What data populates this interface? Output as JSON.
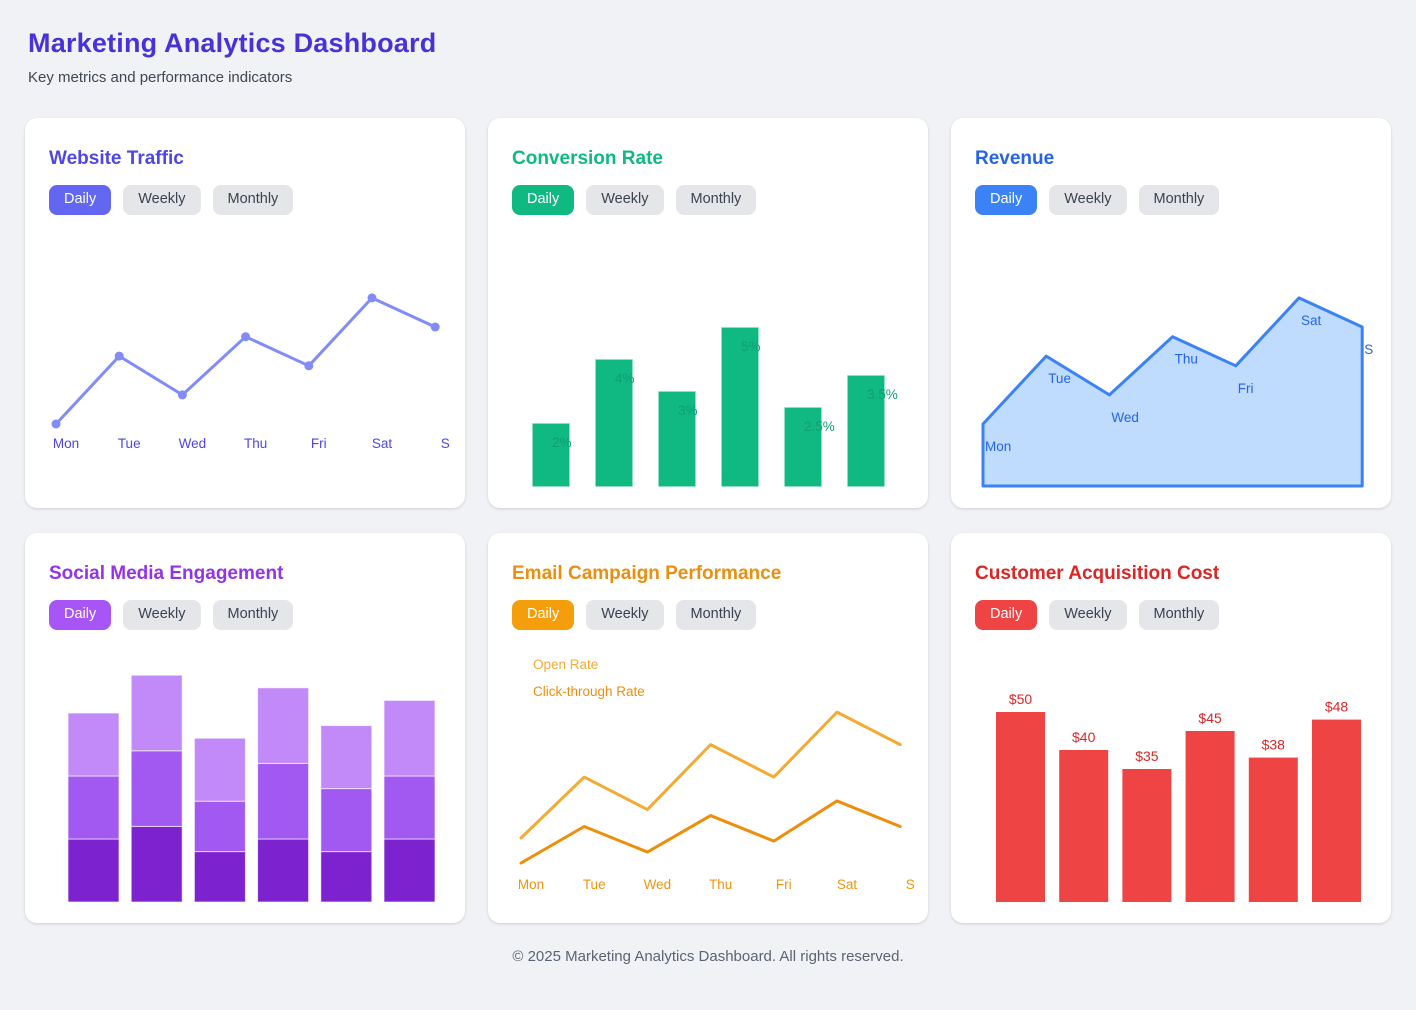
{
  "header": {
    "title": "Marketing Analytics Dashboard",
    "subtitle": "Key metrics and performance indicators"
  },
  "footer": {
    "copyright": "© 2025 Marketing Analytics Dashboard. All rights reserved."
  },
  "theme": {
    "page_bg": "#f1f2f5",
    "card_bg": "#ffffff",
    "header_title_color": "#4732d8",
    "inactive_tab_bg": "#e4e6ea",
    "inactive_tab_text": "#3b4250"
  },
  "cards": [
    {
      "title": "Website Traffic",
      "tabs": {
        "daily": "Daily",
        "weekly": "Weekly",
        "monthly": "Monthly"
      },
      "active_tab": "Daily",
      "colors": {
        "title": "#4f46e5",
        "active_tab_bg": "#6366f1"
      },
      "chart_data": {
        "type": "line",
        "x_labels": [
          "Mon",
          "Tue",
          "Wed",
          "Thu",
          "Fri",
          "Sat",
          "S"
        ],
        "values": [
          120,
          190,
          150,
          210,
          180,
          250,
          220
        ],
        "line_color": "#818cf8",
        "point_color": "#818cf8",
        "label_color": "#4f46e5",
        "grid": "off"
      }
    },
    {
      "title": "Conversion Rate",
      "tabs": {
        "daily": "Daily",
        "weekly": "Weekly",
        "monthly": "Monthly"
      },
      "active_tab": "Daily",
      "colors": {
        "title": "#10b981",
        "active_tab_bg": "#10b981"
      },
      "chart_data": {
        "type": "bar",
        "values": [
          2,
          4,
          3,
          5,
          2.5,
          3.5
        ],
        "value_labels": [
          "2%",
          "4%",
          "3%",
          "5%",
          "2.5%",
          "3.5%"
        ],
        "bar_color": "#10b981",
        "label_color": "#0e9f74",
        "grid": "off"
      }
    },
    {
      "title": "Revenue",
      "tabs": {
        "daily": "Daily",
        "weekly": "Weekly",
        "monthly": "Monthly"
      },
      "active_tab": "Daily",
      "colors": {
        "title": "#2563eb",
        "active_tab_bg": "#3b82f6"
      },
      "chart_data": {
        "type": "area",
        "x_labels": [
          "Mon",
          "Tue",
          "Wed",
          "Thu",
          "Fri",
          "Sat",
          "S"
        ],
        "values": [
          120,
          190,
          150,
          210,
          180,
          250,
          220
        ],
        "fill_color": "#bfdbfe",
        "stroke_color": "#3b82f6",
        "label_color": "#2563eb",
        "grid": "off"
      }
    },
    {
      "title": "Social Media Engagement",
      "tabs": {
        "daily": "Daily",
        "weekly": "Weekly",
        "monthly": "Monthly"
      },
      "active_tab": "Daily",
      "colors": {
        "title": "#9333ea",
        "active_tab_bg": "#a855f7"
      },
      "chart_data": {
        "type": "bar",
        "stacked": true,
        "series": [
          {
            "name": "segment-bottom",
            "color": "#7c22ce",
            "values": [
              50,
              60,
              40,
              50,
              40,
              50
            ]
          },
          {
            "name": "segment-middle",
            "color": "#a259f2",
            "values": [
              50,
              60,
              40,
              60,
              50,
              50
            ]
          },
          {
            "name": "segment-top",
            "color": "#c289f9",
            "values": [
              50,
              60,
              50,
              60,
              50,
              60
            ]
          }
        ],
        "grid": "off"
      }
    },
    {
      "title": "Email Campaign Performance",
      "tabs": {
        "daily": "Daily",
        "weekly": "Weekly",
        "monthly": "Monthly"
      },
      "active_tab": "Daily",
      "colors": {
        "title": "#ea8f0e",
        "active_tab_bg": "#f59e0b"
      },
      "chart_data": {
        "type": "line",
        "x_labels": [
          "Mon",
          "Tue",
          "Wed",
          "Thu",
          "Fri",
          "Sat",
          "S"
        ],
        "series": [
          {
            "name": "Open Rate",
            "color": "#f4ab33",
            "values": [
              45,
              60,
              52,
              68,
              60,
              76,
              68
            ]
          },
          {
            "name": "Click-through Rate",
            "color": "#ef8e0b",
            "values": [
              15,
              25,
              18,
              28,
              21,
              32,
              25
            ]
          }
        ],
        "label_color": "#ef950f",
        "legend_position": "top-left",
        "grid": "off"
      }
    },
    {
      "title": "Customer Acquisition Cost",
      "tabs": {
        "daily": "Daily",
        "weekly": "Weekly",
        "monthly": "Monthly"
      },
      "active_tab": "Daily",
      "colors": {
        "title": "#dc2626",
        "active_tab_bg": "#ef4444"
      },
      "chart_data": {
        "type": "bar",
        "values": [
          50,
          40,
          35,
          45,
          38,
          48
        ],
        "value_labels": [
          "$50",
          "$40",
          "$35",
          "$45",
          "$38",
          "$48"
        ],
        "bar_color": "#ef4444",
        "label_color": "#dc2626",
        "grid": "off"
      }
    }
  ]
}
